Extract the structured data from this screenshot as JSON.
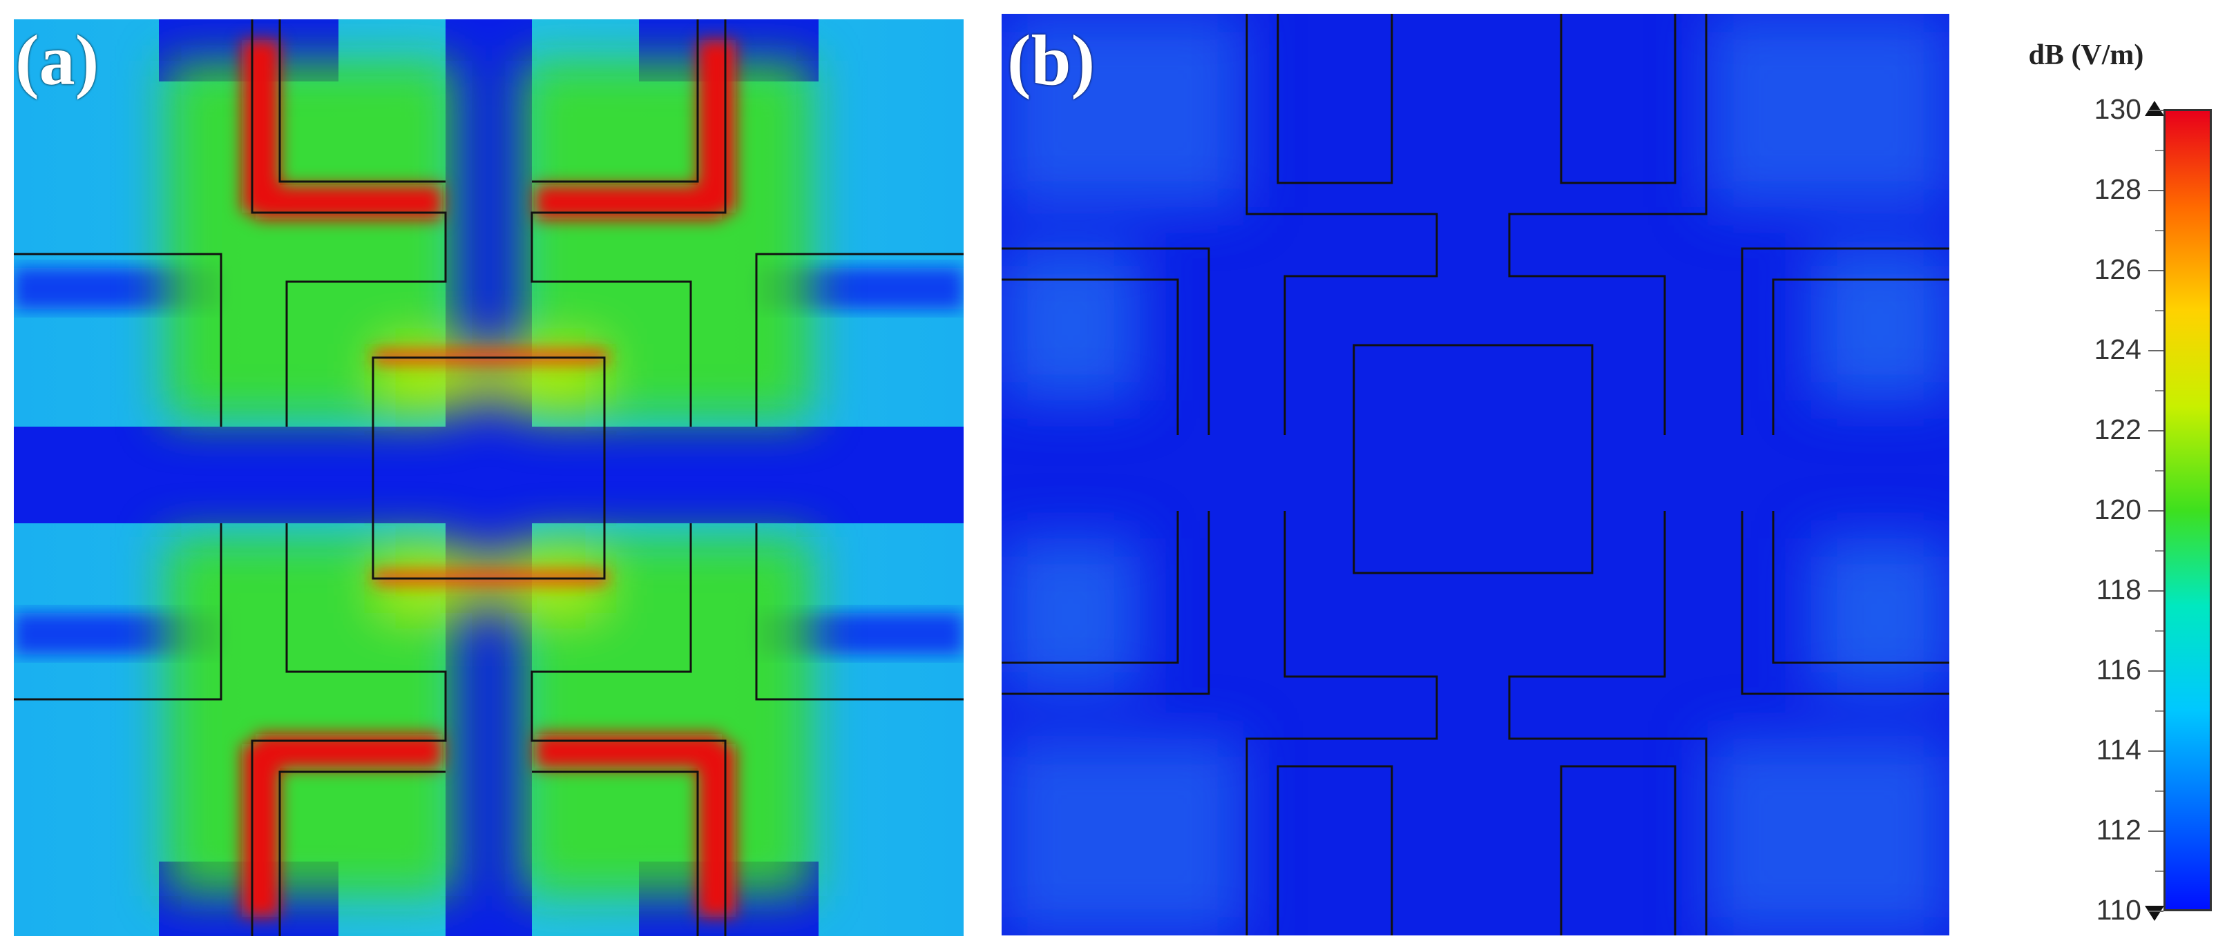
{
  "panels": {
    "a": {
      "label": "(a)",
      "field": "strong"
    },
    "b": {
      "label": "(b)",
      "field": "weak"
    }
  },
  "colorbar": {
    "title": "dB (V/m)",
    "min": 110,
    "max": 130,
    "ticks": [
      "130",
      "128",
      "126",
      "124",
      "122",
      "120",
      "118",
      "116",
      "114",
      "112",
      "110"
    ],
    "colors": [
      "#0010ff",
      "#0070ff",
      "#00c8ff",
      "#00e8c0",
      "#3ee01e",
      "#c8f000",
      "#ffd200",
      "#ff6a00",
      "#e8001a"
    ]
  },
  "icons": {
    "top": "arrow-up-icon",
    "bottom": "arrow-down-icon"
  }
}
